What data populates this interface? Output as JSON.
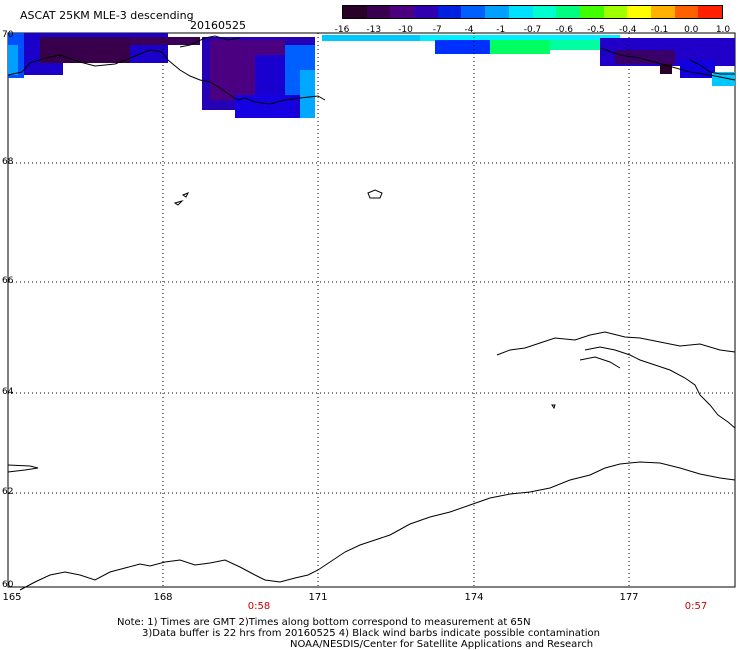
{
  "title": "ASCAT 25KM MLE-3 descending",
  "date": "20160525",
  "colorbar": {
    "colors": [
      "#280028",
      "#380050",
      "#4b0080",
      "#3000b0",
      "#0020e0",
      "#0060ff",
      "#00a0ff",
      "#00e0ff",
      "#00ffd0",
      "#00ff80",
      "#40ff00",
      "#a0ff00",
      "#ffff00",
      "#ffb000",
      "#ff6000",
      "#ff2000"
    ],
    "labels": [
      "-16",
      "-13",
      "-10",
      "-7",
      "-4",
      "-1",
      "-0.7",
      "-0.6",
      "-0.5",
      "-0.4",
      "-0.1",
      "0.0",
      "1.0"
    ]
  },
  "latitude_labels": [
    "70",
    "68",
    "66",
    "64",
    "62",
    "60"
  ],
  "longitude_labels": [
    "165",
    "168",
    "171",
    "174",
    "177"
  ],
  "time_labels": [
    "0:58",
    "0:57"
  ],
  "notes": [
    "Note: 1) Times are GMT 2)Times along bottom correspond to measurement at 65N",
    "3)Data buffer is 22 hrs from 20160525 4) Black wind barbs indicate possible contamination",
    "NOAA/NESDIS/Center for Satellite Applications and Research"
  ]
}
